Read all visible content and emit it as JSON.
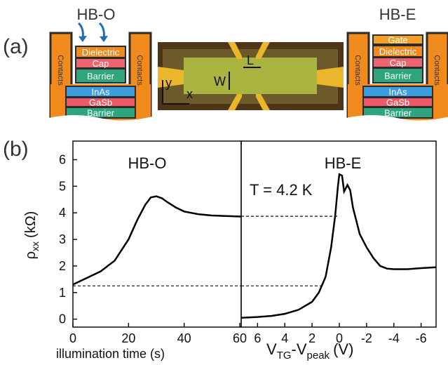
{
  "panel_a": {
    "label": "(a)",
    "left": {
      "title": "HB-O",
      "contacts": [
        "Contacts",
        "Contacts"
      ],
      "layers": [
        {
          "label": "Dielectric",
          "color": "#f08a1c"
        },
        {
          "label": "Cap",
          "color": "#ec6470"
        },
        {
          "label": "Barrier",
          "color": "#2ea57c"
        },
        {
          "label": "InAs",
          "color": "#3d9be0"
        },
        {
          "label": "GaSb",
          "color": "#ec5a68"
        },
        {
          "label": "Barrier",
          "color": "#2ea57c"
        }
      ]
    },
    "right": {
      "title": "HB-E",
      "contacts": [
        "Contacts",
        "Contacts"
      ],
      "layers": [
        {
          "label": "Gate",
          "color": "#f3a126"
        },
        {
          "label": "Dielectric",
          "color": "#f08a1c"
        },
        {
          "label": "Cap",
          "color": "#ec6470"
        },
        {
          "label": "Barrier",
          "color": "#2ea57c"
        },
        {
          "label": "InAs",
          "color": "#3d9be0"
        },
        {
          "label": "GaSb",
          "color": "#ec5a68"
        },
        {
          "label": "Barrier",
          "color": "#2ea57c"
        }
      ]
    },
    "micrograph": {
      "axis_y": "y",
      "axis_x": "x",
      "width_label": "W",
      "length_label": "L"
    }
  },
  "panel_b_label": "(b)",
  "y_label": {
    "symbol": "ρ",
    "sub": "xx",
    "unit": "(kΩ)"
  },
  "chart_data": [
    {
      "type": "line",
      "title": "HB-O",
      "x_label": "illumination time (s)",
      "color": "#000000",
      "x": [
        0,
        5,
        10,
        15,
        20,
        23,
        26,
        28,
        30,
        32,
        34,
        37,
        40,
        45,
        50,
        55,
        60.5
      ],
      "values": [
        1.3,
        1.55,
        1.8,
        2.2,
        3.0,
        3.7,
        4.3,
        4.58,
        4.62,
        4.55,
        4.4,
        4.2,
        4.05,
        3.95,
        3.9,
        3.88,
        3.86
      ],
      "xlim": [
        0,
        60.5
      ],
      "xticks": [
        0,
        20,
        40,
        60
      ],
      "ylim": [
        -0.3,
        6.7
      ],
      "yticks": [
        0,
        1,
        2,
        3,
        4,
        5,
        6
      ],
      "hlines": [
        {
          "y": 1.25,
          "x": [
            0,
            60.5
          ]
        }
      ]
    },
    {
      "type": "line",
      "title": "HB-E",
      "annotation": "T = 4.2 K",
      "x_label": {
        "main": "V",
        "sub1": "TG",
        "mid": "-V",
        "sub2": "peak",
        "unit": "(V)"
      },
      "color": "#000000",
      "x": [
        7.2,
        6,
        5,
        4,
        3,
        2,
        1.5,
        1,
        0.6,
        0.3,
        0.1,
        0,
        -0.2,
        -0.35,
        -0.6,
        -0.8,
        -1,
        -1.5,
        -2,
        -2.5,
        -3,
        -3.5,
        -4,
        -5,
        -6,
        -7.1
      ],
      "values": [
        0.05,
        0.08,
        0.12,
        0.2,
        0.35,
        0.65,
        1.0,
        1.6,
        2.7,
        3.9,
        5.0,
        5.45,
        5.4,
        4.8,
        5.05,
        4.85,
        4.2,
        3.2,
        2.7,
        2.3,
        2.0,
        1.9,
        1.88,
        1.88,
        1.92,
        1.95
      ],
      "xlim": [
        7.2,
        -7.1
      ],
      "xticks": [
        6,
        4,
        2,
        0,
        -2,
        -4,
        -6
      ],
      "ylim": [
        -0.3,
        6.7
      ],
      "hlines": [
        {
          "y": 3.87,
          "x": [
            7.2,
            0
          ]
        },
        {
          "y": 1.25,
          "x": [
            7.2,
            1.3
          ]
        }
      ]
    }
  ]
}
